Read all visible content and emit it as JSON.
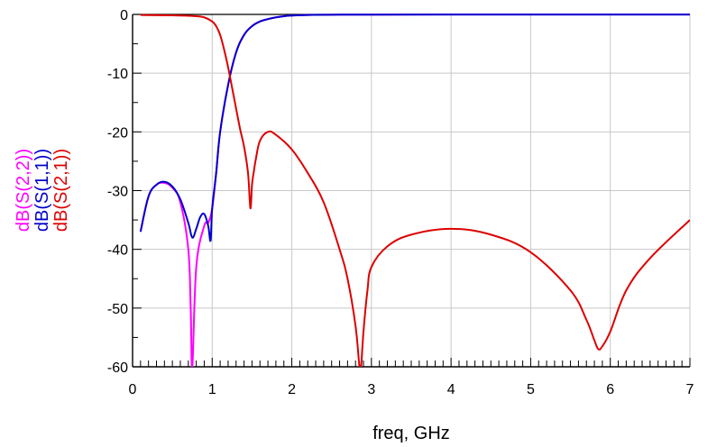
{
  "chart_data": {
    "type": "line",
    "title": "",
    "xlabel": "freq, GHz",
    "ylabel": "",
    "xlim": [
      0,
      7
    ],
    "ylim": [
      -60,
      0
    ],
    "x_ticks": [
      0,
      1,
      2,
      3,
      4,
      5,
      6,
      7
    ],
    "y_ticks": [
      0,
      -10,
      -20,
      -30,
      -40,
      -50,
      -60
    ],
    "x_tick_labels": [
      "0",
      "1",
      "2",
      "3",
      "4",
      "5",
      "6",
      "7"
    ],
    "y_tick_labels": [
      "0",
      "-10",
      "-20",
      "-30",
      "-40",
      "-50",
      "-60"
    ],
    "grid": true,
    "legend_position": "left-vertical",
    "series": [
      {
        "name": "dB(S(2,2))",
        "color": "#ff00ff",
        "x": [
          0.1,
          0.2,
          0.3,
          0.4,
          0.5,
          0.6,
          0.7,
          0.73,
          0.75,
          0.8,
          0.9,
          0.95,
          1.0,
          1.05,
          1.1,
          1.2,
          1.3,
          1.4,
          1.5,
          1.6,
          1.7,
          1.8,
          1.9,
          2.0,
          2.2,
          2.5,
          3.0,
          4.0,
          5.0,
          6.0,
          7.0
        ],
        "values": [
          -37,
          -31,
          -29,
          -28.7,
          -29.5,
          -32,
          -40,
          -50,
          -60,
          -43,
          -36,
          -35.5,
          -33,
          -27,
          -20,
          -12,
          -6.5,
          -3.5,
          -2,
          -1.2,
          -0.8,
          -0.5,
          -0.3,
          -0.2,
          -0.1,
          -0.05,
          -0.03,
          -0.02,
          -0.02,
          -0.02,
          -0.02
        ]
      },
      {
        "name": "dB(S(1,1))",
        "color": "#0000cc",
        "x": [
          0.1,
          0.2,
          0.3,
          0.4,
          0.5,
          0.6,
          0.7,
          0.75,
          0.8,
          0.85,
          0.9,
          0.95,
          0.98,
          1.0,
          1.05,
          1.1,
          1.2,
          1.3,
          1.4,
          1.5,
          1.6,
          1.7,
          1.8,
          1.9,
          2.0,
          2.2,
          2.5,
          3.0,
          4.0,
          5.0,
          6.0,
          7.0
        ],
        "values": [
          -37,
          -31,
          -29,
          -28.5,
          -29.3,
          -31.5,
          -35.5,
          -38,
          -36.5,
          -34.5,
          -34,
          -36,
          -38.5,
          -33,
          -27,
          -20,
          -12,
          -6.5,
          -3.5,
          -2,
          -1.2,
          -0.8,
          -0.5,
          -0.3,
          -0.2,
          -0.1,
          -0.05,
          -0.03,
          -0.02,
          -0.02,
          -0.02,
          -0.02
        ]
      },
      {
        "name": "dB(S(2,1))",
        "color": "#dd0000",
        "x": [
          0.1,
          0.5,
          0.8,
          0.9,
          1.0,
          1.05,
          1.1,
          1.15,
          1.2,
          1.25,
          1.3,
          1.35,
          1.4,
          1.45,
          1.48,
          1.5,
          1.52,
          1.55,
          1.6,
          1.7,
          1.8,
          2.0,
          2.2,
          2.4,
          2.6,
          2.7,
          2.8,
          2.85,
          2.87,
          2.9,
          2.95,
          3.0,
          3.2,
          3.5,
          4.0,
          4.5,
          5.0,
          5.5,
          5.7,
          5.8,
          5.85,
          5.9,
          6.0,
          6.2,
          6.5,
          7.0
        ],
        "values": [
          -0.1,
          -0.15,
          -0.3,
          -0.5,
          -1.2,
          -2,
          -3.5,
          -6,
          -9,
          -12.5,
          -16,
          -19.5,
          -22.5,
          -27,
          -33,
          -29,
          -27,
          -24.5,
          -21.5,
          -20,
          -20.5,
          -23,
          -27,
          -32,
          -40,
          -45,
          -53,
          -60,
          -60,
          -54,
          -47,
          -43,
          -39.5,
          -37.5,
          -36.5,
          -37.5,
          -40.5,
          -47,
          -52,
          -55.5,
          -57,
          -56.5,
          -54,
          -47,
          -41.5,
          -35
        ]
      }
    ]
  }
}
